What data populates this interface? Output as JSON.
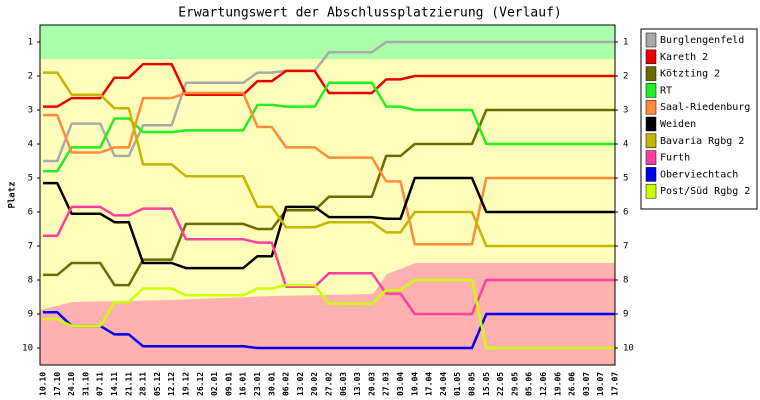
{
  "chart_data": {
    "type": "line",
    "title": "Erwartungswert der Abschlussplatzierung (Verlauf)",
    "y_label": "Platz",
    "categories": [
      "10.10",
      "17.10",
      "24.10",
      "31.10",
      "07.11",
      "14.11",
      "21.11",
      "28.11",
      "05.12",
      "12.12",
      "19.12",
      "26.12",
      "02.01",
      "09.01",
      "16.01",
      "23.01",
      "30.01",
      "06.02",
      "13.02",
      "20.02",
      "27.02",
      "06.03",
      "13.03",
      "20.03",
      "27.03",
      "03.04",
      "10.04",
      "17.04",
      "24.04",
      "01.05",
      "08.05",
      "15.05",
      "22.05",
      "29.05",
      "05.06",
      "12.06",
      "19.06",
      "26.06",
      "03.07",
      "10.07",
      "17.07"
    ],
    "ylim": [
      0.5,
      10.5
    ],
    "y_reversed": true,
    "yticks": [
      1,
      2,
      3,
      4,
      5,
      6,
      7,
      8,
      9,
      10
    ],
    "grid": false,
    "legend": "right",
    "series": [
      {
        "name": "Burglengenfeld",
        "color": "#aaaaaa",
        "values": [
          4.5,
          4.5,
          3.4,
          3.4,
          3.4,
          4.35,
          4.35,
          3.45,
          3.45,
          3.45,
          2.2,
          2.2,
          2.2,
          2.2,
          2.2,
          1.9,
          1.9,
          1.85,
          1.85,
          1.85,
          1.3,
          1.3,
          1.3,
          1.3,
          1.0,
          1.0,
          1.0,
          1.0,
          1.0,
          1.0,
          1.0,
          1.0,
          1.0,
          1.0,
          1.0,
          1.0,
          1.0,
          1.0,
          1.0,
          1.0,
          1.0
        ]
      },
      {
        "name": "Kareth 2",
        "color": "#ee0000",
        "values": [
          2.9,
          2.9,
          2.65,
          2.65,
          2.65,
          2.05,
          2.05,
          1.65,
          1.65,
          1.65,
          2.55,
          2.55,
          2.55,
          2.55,
          2.55,
          2.15,
          2.15,
          1.85,
          1.85,
          1.85,
          2.5,
          2.5,
          2.5,
          2.5,
          2.1,
          2.1,
          2.0,
          2.0,
          2.0,
          2.0,
          2.0,
          2.0,
          2.0,
          2.0,
          2.0,
          2.0,
          2.0,
          2.0,
          2.0,
          2.0,
          2.0
        ]
      },
      {
        "name": "Kötzting 2",
        "color": "#6b6b00",
        "values": [
          7.85,
          7.85,
          7.5,
          7.5,
          7.5,
          8.15,
          8.15,
          7.4,
          7.4,
          7.4,
          6.35,
          6.35,
          6.35,
          6.35,
          6.35,
          6.5,
          6.5,
          5.95,
          5.95,
          5.95,
          5.55,
          5.55,
          5.55,
          5.55,
          4.35,
          4.35,
          4.0,
          4.0,
          4.0,
          4.0,
          4.0,
          3.0,
          3.0,
          3.0,
          3.0,
          3.0,
          3.0,
          3.0,
          3.0,
          3.0,
          3.0
        ]
      },
      {
        "name": "RT",
        "color": "#22ee22",
        "values": [
          4.8,
          4.8,
          4.1,
          4.1,
          4.1,
          3.25,
          3.25,
          3.65,
          3.65,
          3.65,
          3.6,
          3.6,
          3.6,
          3.6,
          3.6,
          2.85,
          2.85,
          2.9,
          2.9,
          2.9,
          2.2,
          2.2,
          2.2,
          2.2,
          2.9,
          2.9,
          3.0,
          3.0,
          3.0,
          3.0,
          3.0,
          4.0,
          4.0,
          4.0,
          4.0,
          4.0,
          4.0,
          4.0,
          4.0,
          4.0,
          4.0
        ]
      },
      {
        "name": "Saal-Riedenburg",
        "color": "#ff8c3a",
        "values": [
          3.15,
          3.15,
          4.25,
          4.25,
          4.25,
          4.1,
          4.1,
          2.65,
          2.65,
          2.65,
          2.5,
          2.5,
          2.5,
          2.5,
          2.5,
          3.5,
          3.5,
          4.1,
          4.1,
          4.1,
          4.4,
          4.4,
          4.4,
          4.4,
          5.1,
          5.1,
          6.95,
          6.95,
          6.95,
          6.95,
          6.95,
          5.0,
          5.0,
          5.0,
          5.0,
          5.0,
          5.0,
          5.0,
          5.0,
          5.0,
          5.0
        ]
      },
      {
        "name": "Weiden",
        "color": "#000000",
        "values": [
          5.15,
          5.15,
          6.05,
          6.05,
          6.05,
          6.3,
          6.3,
          7.5,
          7.5,
          7.5,
          7.65,
          7.65,
          7.65,
          7.65,
          7.65,
          7.3,
          7.3,
          5.85,
          5.85,
          5.85,
          6.15,
          6.15,
          6.15,
          6.15,
          6.2,
          6.2,
          5.0,
          5.0,
          5.0,
          5.0,
          5.0,
          6.0,
          6.0,
          6.0,
          6.0,
          6.0,
          6.0,
          6.0,
          6.0,
          6.0,
          6.0
        ]
      },
      {
        "name": "Bavaria Rgbg 2",
        "color": "#c8b400",
        "values": [
          1.9,
          1.9,
          2.55,
          2.55,
          2.55,
          2.95,
          2.95,
          4.6,
          4.6,
          4.6,
          4.95,
          4.95,
          4.95,
          4.95,
          4.95,
          5.85,
          5.85,
          6.45,
          6.45,
          6.45,
          6.3,
          6.3,
          6.3,
          6.3,
          6.6,
          6.6,
          6.0,
          6.0,
          6.0,
          6.0,
          6.0,
          7.0,
          7.0,
          7.0,
          7.0,
          7.0,
          7.0,
          7.0,
          7.0,
          7.0,
          7.0
        ]
      },
      {
        "name": "Furth",
        "color": "#ff3fa0",
        "values": [
          6.7,
          6.7,
          5.85,
          5.85,
          5.85,
          6.1,
          6.1,
          5.9,
          5.9,
          5.9,
          6.8,
          6.8,
          6.8,
          6.8,
          6.8,
          6.9,
          6.9,
          8.2,
          8.2,
          8.2,
          7.8,
          7.8,
          7.8,
          7.8,
          8.4,
          8.4,
          9.0,
          9.0,
          9.0,
          9.0,
          9.0,
          8.0,
          8.0,
          8.0,
          8.0,
          8.0,
          8.0,
          8.0,
          8.0,
          8.0,
          8.0
        ]
      },
      {
        "name": "Oberviechtach",
        "color": "#0000ee",
        "values": [
          8.95,
          8.95,
          9.35,
          9.35,
          9.35,
          9.6,
          9.6,
          9.95,
          9.95,
          9.95,
          9.95,
          9.95,
          9.95,
          9.95,
          9.95,
          10.0,
          10.0,
          10.0,
          10.0,
          10.0,
          10.0,
          10.0,
          10.0,
          10.0,
          10.0,
          10.0,
          10.0,
          10.0,
          10.0,
          10.0,
          10.0,
          9.0,
          9.0,
          9.0,
          9.0,
          9.0,
          9.0,
          9.0,
          9.0,
          9.0,
          9.0
        ]
      },
      {
        "name": "Post/Süd Rgbg 2",
        "color": "#ccff00",
        "values": [
          9.15,
          9.15,
          9.35,
          9.35,
          9.35,
          8.65,
          8.65,
          8.25,
          8.25,
          8.25,
          8.45,
          8.45,
          8.45,
          8.45,
          8.45,
          8.25,
          8.25,
          8.15,
          8.15,
          8.15,
          8.7,
          8.7,
          8.7,
          8.7,
          8.3,
          8.3,
          8.0,
          8.0,
          8.0,
          8.0,
          8.0,
          10.0,
          10.0,
          10.0,
          10.0,
          10.0,
          10.0,
          10.0,
          10.0,
          10.0,
          10.0
        ]
      }
    ]
  }
}
